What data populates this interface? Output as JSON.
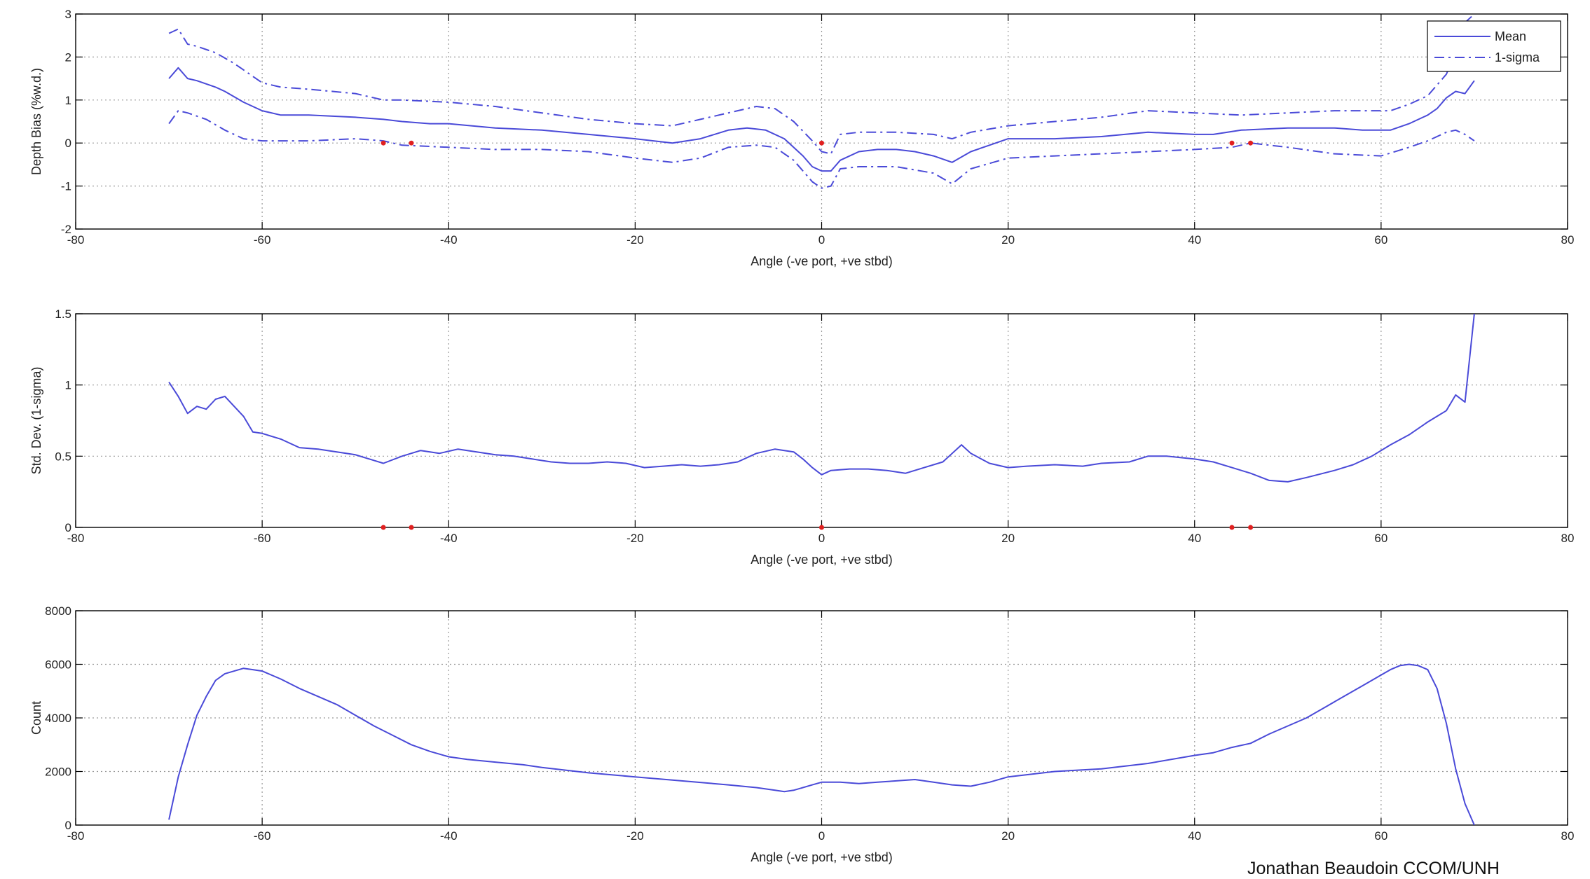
{
  "colors": {
    "line": "#4a4ad8",
    "marker": "#e02020",
    "grid": "#999999",
    "axis": "#000000"
  },
  "credit": "Jonathan Beaudoin CCOM/UNH",
  "chart_data": [
    {
      "type": "line",
      "title": "",
      "xlabel": "Angle (-ve port, +ve stbd)",
      "ylabel": "Depth Bias (%w.d.)",
      "xlim": [
        -80,
        80
      ],
      "ylim": [
        -2,
        3
      ],
      "xticks": [
        -80,
        -60,
        -40,
        -20,
        0,
        20,
        40,
        60,
        80
      ],
      "yticks": [
        -2,
        -1,
        0,
        1,
        2,
        3
      ],
      "grid": true,
      "legend": {
        "position": "top-right",
        "entries": [
          {
            "label": "Mean",
            "style": "solid"
          },
          {
            "label": "1-sigma",
            "style": "dashdot"
          }
        ]
      },
      "series": [
        {
          "name": "Mean",
          "style": "solid",
          "x": [
            -70,
            -69,
            -68,
            -67,
            -65,
            -64,
            -62,
            -60,
            -58,
            -55,
            -50,
            -47,
            -45,
            -42,
            -40,
            -35,
            -30,
            -25,
            -20,
            -16,
            -13,
            -10,
            -8,
            -6,
            -4,
            -2,
            -1,
            0,
            1,
            2,
            4,
            6,
            8,
            10,
            12,
            14,
            16,
            18,
            20,
            25,
            30,
            35,
            40,
            42,
            45,
            50,
            55,
            58,
            61,
            63,
            65,
            66,
            67,
            68,
            69,
            70
          ],
          "y": [
            1.5,
            1.75,
            1.5,
            1.45,
            1.3,
            1.2,
            0.95,
            0.75,
            0.65,
            0.65,
            0.6,
            0.55,
            0.5,
            0.45,
            0.45,
            0.35,
            0.3,
            0.2,
            0.1,
            0.0,
            0.1,
            0.3,
            0.35,
            0.3,
            0.1,
            -0.3,
            -0.55,
            -0.65,
            -0.65,
            -0.4,
            -0.2,
            -0.15,
            -0.15,
            -0.2,
            -0.3,
            -0.45,
            -0.2,
            -0.05,
            0.1,
            0.1,
            0.15,
            0.25,
            0.2,
            0.2,
            0.3,
            0.35,
            0.35,
            0.3,
            0.3,
            0.45,
            0.65,
            0.8,
            1.05,
            1.2,
            1.15,
            1.45
          ]
        },
        {
          "name": "1-sigma",
          "style": "dashdot",
          "x": [
            -70,
            -69,
            -68,
            -67,
            -65,
            -63,
            -60,
            -58,
            -55,
            -50,
            -47,
            -45,
            -40,
            -35,
            -30,
            -25,
            -20,
            -16,
            -13,
            -10,
            -7,
            -5,
            -3,
            -1,
            0,
            1,
            2,
            4,
            8,
            12,
            14,
            16,
            20,
            25,
            30,
            35,
            40,
            45,
            50,
            55,
            58,
            61,
            63,
            65,
            67,
            68,
            69,
            70
          ],
          "y": [
            2.55,
            2.65,
            2.3,
            2.25,
            2.1,
            1.85,
            1.4,
            1.3,
            1.25,
            1.15,
            1.0,
            1.0,
            0.95,
            0.85,
            0.7,
            0.55,
            0.45,
            0.4,
            0.55,
            0.7,
            0.85,
            0.8,
            0.5,
            0.05,
            -0.2,
            -0.25,
            0.2,
            0.25,
            0.25,
            0.2,
            0.1,
            0.25,
            0.4,
            0.5,
            0.6,
            0.75,
            0.7,
            0.65,
            0.7,
            0.75,
            0.75,
            0.75,
            0.9,
            1.1,
            1.6,
            2.1,
            2.8,
            3.0
          ]
        },
        {
          "name": "1-sigma lower",
          "style": "dashdot",
          "x": [
            -70,
            -69,
            -68,
            -66,
            -64,
            -62,
            -60,
            -55,
            -50,
            -47,
            -45,
            -40,
            -35,
            -30,
            -25,
            -20,
            -16,
            -13,
            -10,
            -7,
            -5,
            -3,
            -1,
            0,
            1,
            2,
            4,
            8,
            12,
            14,
            16,
            20,
            25,
            30,
            35,
            40,
            44,
            46,
            50,
            55,
            60,
            63,
            65,
            67,
            68,
            69,
            70
          ],
          "y": [
            0.45,
            0.75,
            0.7,
            0.55,
            0.3,
            0.1,
            0.05,
            0.05,
            0.1,
            0.05,
            -0.05,
            -0.1,
            -0.15,
            -0.15,
            -0.2,
            -0.35,
            -0.45,
            -0.35,
            -0.1,
            -0.05,
            -0.1,
            -0.4,
            -0.9,
            -1.05,
            -1.0,
            -0.6,
            -0.55,
            -0.55,
            -0.7,
            -0.95,
            -0.6,
            -0.35,
            -0.3,
            -0.25,
            -0.2,
            -0.15,
            -0.1,
            0.0,
            -0.1,
            -0.25,
            -0.3,
            -0.1,
            0.05,
            0.25,
            0.3,
            0.2,
            0.05
          ]
        }
      ],
      "markers": {
        "x": [
          -47,
          -44,
          0,
          44,
          46
        ],
        "y": [
          0,
          0,
          0,
          0,
          0
        ]
      }
    },
    {
      "type": "line",
      "title": "",
      "xlabel": "Angle (-ve port, +ve stbd)",
      "ylabel": "Std. Dev. (1-sigma)",
      "xlim": [
        -80,
        80
      ],
      "ylim": [
        0,
        1.5
      ],
      "xticks": [
        -80,
        -60,
        -40,
        -20,
        0,
        20,
        40,
        60,
        80
      ],
      "yticks": [
        0,
        0.5,
        1,
        1.5
      ],
      "grid": true,
      "series": [
        {
          "style": "solid",
          "x": [
            -70,
            -69,
            -68,
            -67,
            -66,
            -65,
            -64,
            -63,
            -62,
            -61,
            -60,
            -58,
            -56,
            -54,
            -52,
            -50,
            -48,
            -47,
            -45,
            -43,
            -41,
            -39,
            -37,
            -35,
            -33,
            -31,
            -29,
            -27,
            -25,
            -23,
            -21,
            -19,
            -17,
            -15,
            -13,
            -11,
            -9,
            -7,
            -5,
            -3,
            -2,
            -1,
            0,
            1,
            3,
            5,
            7,
            9,
            11,
            13,
            14,
            15,
            16,
            18,
            20,
            22,
            25,
            28,
            30,
            33,
            35,
            37,
            40,
            42,
            44,
            46,
            48,
            50,
            52,
            55,
            57,
            59,
            61,
            63,
            65,
            66,
            67,
            68,
            69,
            70
          ],
          "y": [
            1.02,
            0.92,
            0.8,
            0.85,
            0.83,
            0.9,
            0.92,
            0.85,
            0.78,
            0.67,
            0.66,
            0.62,
            0.56,
            0.55,
            0.53,
            0.51,
            0.47,
            0.45,
            0.5,
            0.54,
            0.52,
            0.55,
            0.53,
            0.51,
            0.5,
            0.48,
            0.46,
            0.45,
            0.45,
            0.46,
            0.45,
            0.42,
            0.43,
            0.44,
            0.43,
            0.44,
            0.46,
            0.52,
            0.55,
            0.53,
            0.48,
            0.42,
            0.37,
            0.4,
            0.41,
            0.41,
            0.4,
            0.38,
            0.42,
            0.46,
            0.52,
            0.58,
            0.52,
            0.45,
            0.42,
            0.43,
            0.44,
            0.43,
            0.45,
            0.46,
            0.5,
            0.5,
            0.48,
            0.46,
            0.42,
            0.38,
            0.33,
            0.32,
            0.35,
            0.4,
            0.44,
            0.5,
            0.58,
            0.65,
            0.74,
            0.78,
            0.82,
            0.93,
            0.88,
            1.5
          ]
        }
      ],
      "markers": {
        "x": [
          -47,
          -44,
          0,
          44,
          46
        ],
        "y": [
          0,
          0,
          0,
          0,
          0
        ]
      }
    },
    {
      "type": "line",
      "title": "",
      "xlabel": "Angle (-ve port, +ve stbd)",
      "ylabel": "Count",
      "xlim": [
        -80,
        80
      ],
      "ylim": [
        0,
        8000
      ],
      "xticks": [
        -80,
        -60,
        -40,
        -20,
        0,
        20,
        40,
        60,
        80
      ],
      "yticks": [
        0,
        2000,
        4000,
        6000,
        8000
      ],
      "grid": true,
      "series": [
        {
          "style": "solid",
          "x": [
            -70,
            -69,
            -68,
            -67,
            -66,
            -65,
            -64,
            -63,
            -62,
            -61,
            -60,
            -58,
            -56,
            -54,
            -52,
            -50,
            -48,
            -46,
            -44,
            -42,
            -40,
            -38,
            -35,
            -32,
            -30,
            -25,
            -20,
            -15,
            -10,
            -7,
            -5,
            -4,
            -3,
            -1,
            0,
            2,
            4,
            6,
            8,
            10,
            12,
            14,
            16,
            18,
            20,
            25,
            30,
            35,
            40,
            42,
            44,
            46,
            48,
            50,
            52,
            54,
            56,
            58,
            60,
            61,
            62,
            63,
            64,
            65,
            66,
            67,
            68,
            69,
            70
          ],
          "y": [
            200,
            1800,
            3000,
            4100,
            4800,
            5400,
            5650,
            5750,
            5850,
            5800,
            5750,
            5450,
            5100,
            4800,
            4500,
            4100,
            3700,
            3350,
            3000,
            2750,
            2550,
            2450,
            2350,
            2250,
            2150,
            1950,
            1800,
            1650,
            1500,
            1400,
            1300,
            1250,
            1300,
            1500,
            1600,
            1600,
            1550,
            1600,
            1650,
            1700,
            1600,
            1500,
            1450,
            1600,
            1800,
            2000,
            2100,
            2300,
            2600,
            2700,
            2900,
            3050,
            3400,
            3700,
            4000,
            4400,
            4800,
            5200,
            5600,
            5800,
            5950,
            6000,
            5950,
            5800,
            5100,
            3800,
            2100,
            800,
            0
          ]
        }
      ]
    }
  ]
}
